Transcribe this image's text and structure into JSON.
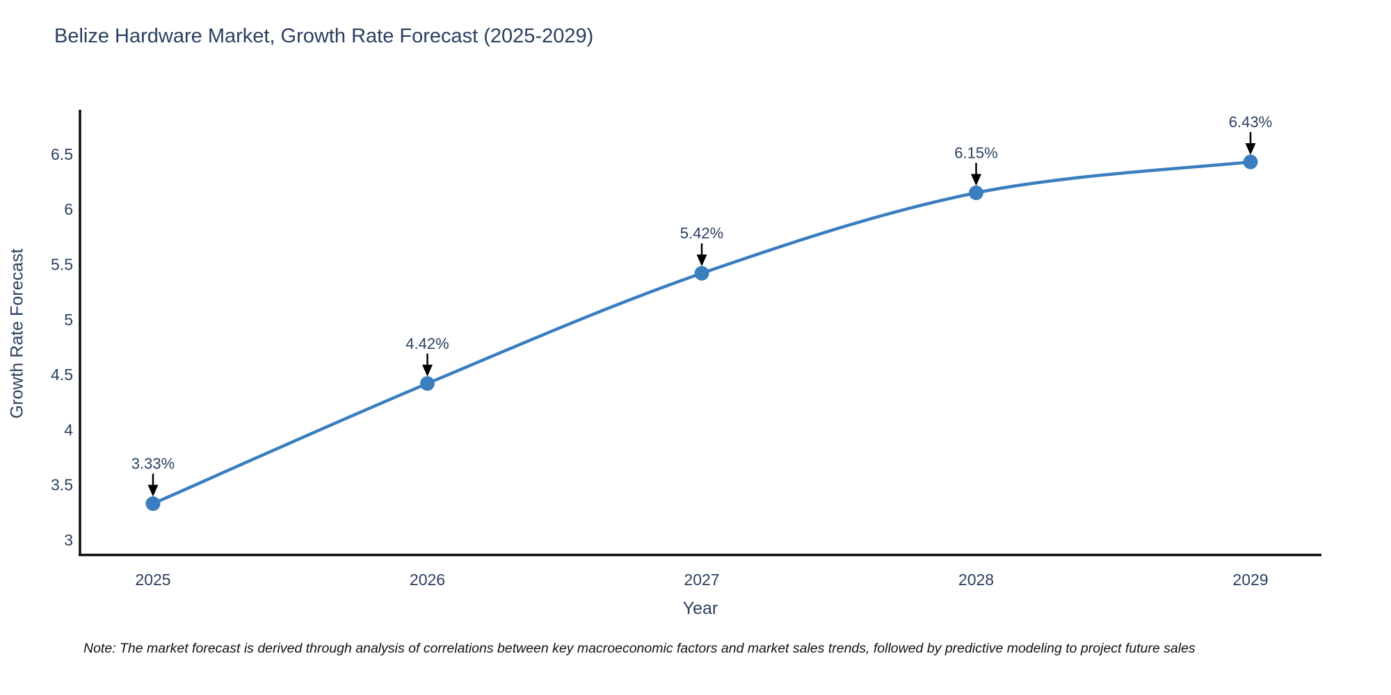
{
  "chart_data": {
    "type": "line",
    "title": "Belize Hardware Market, Growth Rate Forecast (2025-2029)",
    "xlabel": "Year",
    "ylabel": "Growth Rate Forecast",
    "categories": [
      "2025",
      "2026",
      "2027",
      "2028",
      "2029"
    ],
    "series": [
      {
        "name": "Growth Rate Forecast",
        "values": [
          3.33,
          4.42,
          5.42,
          6.15,
          6.43
        ],
        "point_labels": [
          "3.33%",
          "4.42%",
          "5.42%",
          "6.15%",
          "6.43%"
        ]
      }
    ],
    "yticks": [
      "3",
      "3.5",
      "4",
      "4.5",
      "5",
      "5.5",
      "6",
      "6.5"
    ],
    "ytick_values": [
      3,
      3.5,
      4,
      4.5,
      5,
      5.5,
      6,
      6.5
    ],
    "ylim": [
      2.85,
      6.9
    ],
    "grid": false,
    "legend_position": "none",
    "line_shape": "spline",
    "colors": {
      "line": "#3a7ebf",
      "marker": "#3a7ebf",
      "axis": "#0d0d0e",
      "tick_text": "#2a3f5f",
      "annotation_text": "#2a3f5f",
      "annotation_arrow": "#000000"
    }
  },
  "footnote": {
    "text": "Note: The market forecast is derived through analysis of correlations between key macroeconomic factors and market sales trends, followed by predictive modeling to project future sales"
  }
}
